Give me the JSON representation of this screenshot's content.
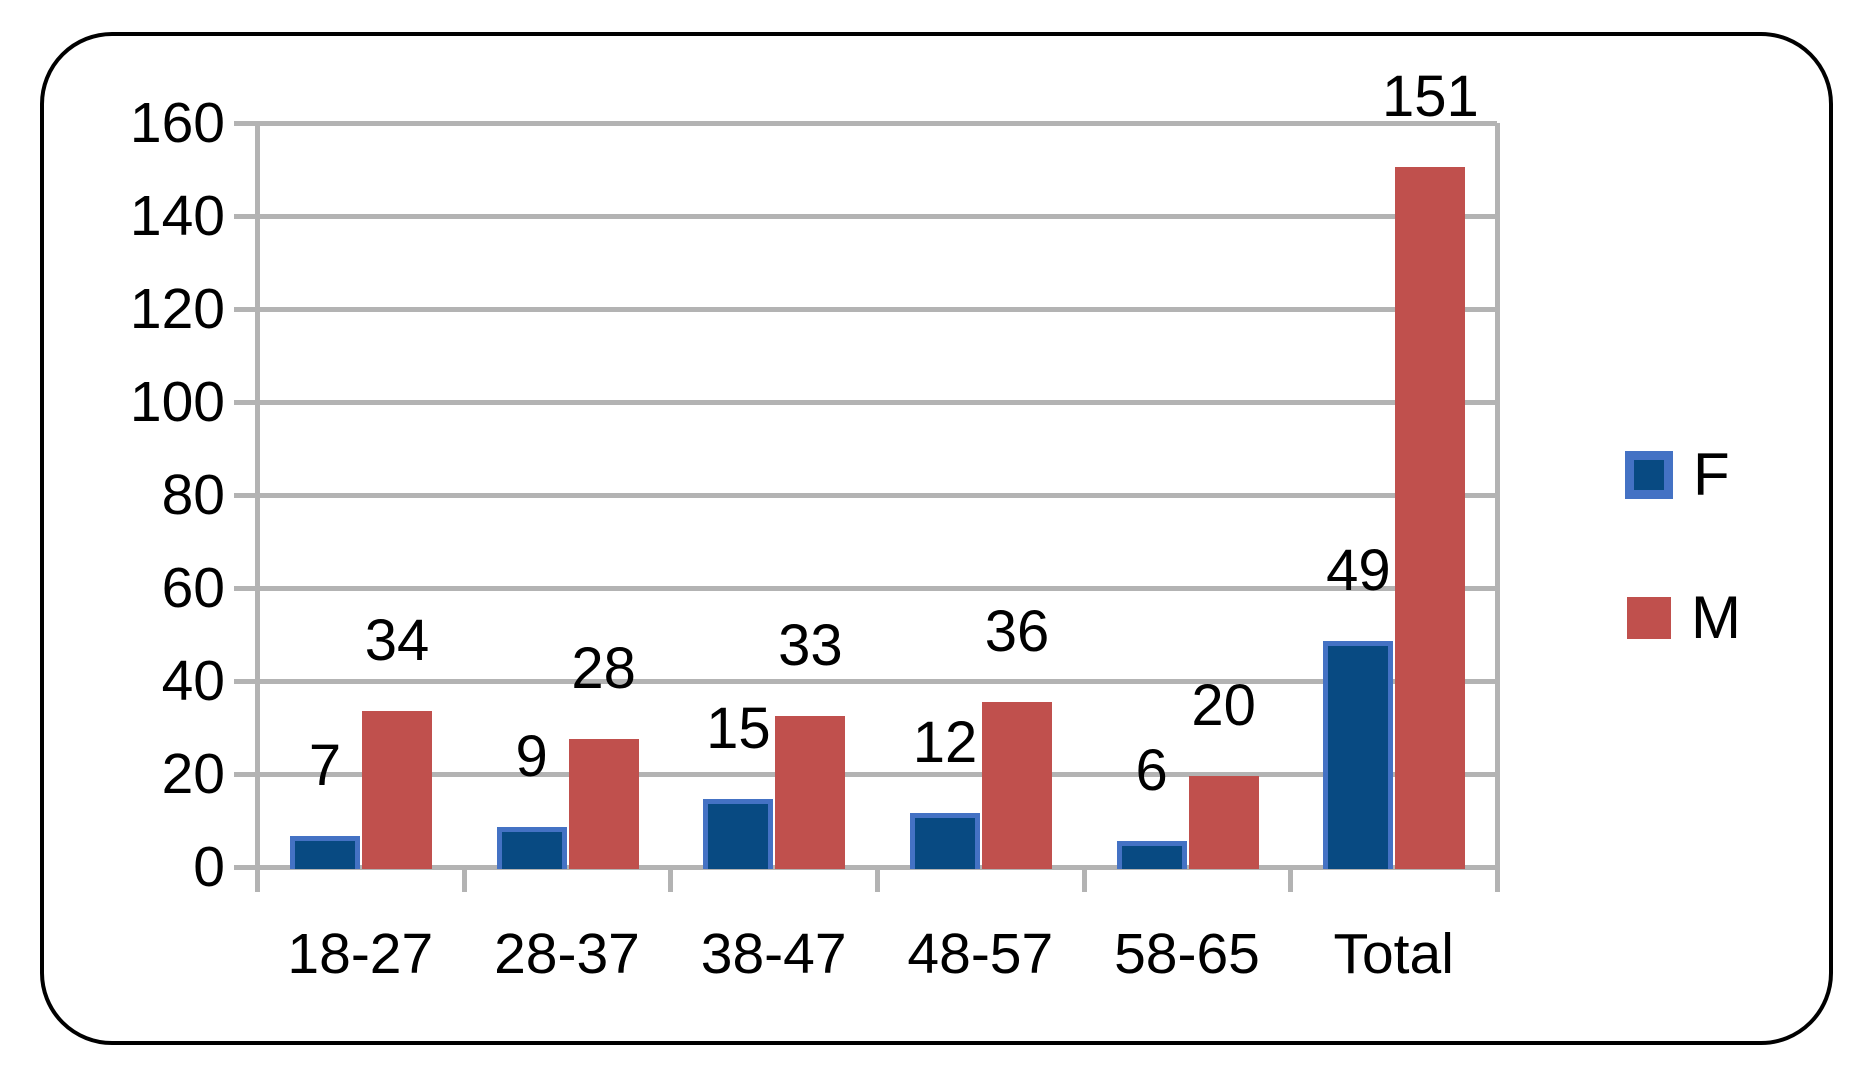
{
  "chart_data": {
    "type": "bar",
    "categories": [
      "18-27",
      "28-37",
      "38-47",
      "48-57",
      "58-65",
      "Total"
    ],
    "series": [
      {
        "name": "F",
        "values": [
          7,
          9,
          15,
          12,
          6,
          49
        ]
      },
      {
        "name": "M",
        "values": [
          34,
          28,
          33,
          36,
          20,
          151
        ]
      }
    ],
    "data_labels_shown": true,
    "ylim": [
      0,
      160
    ],
    "ytick_step": 20,
    "yticks": [
      0,
      20,
      40,
      60,
      80,
      100,
      120,
      140,
      160
    ],
    "grid": true,
    "legend": {
      "position": "right",
      "entries": [
        "F",
        "M"
      ]
    },
    "colors": {
      "F_fill": "#084a82",
      "F_border": "#4472c4",
      "M_fill": "#c0504d",
      "gridline": "#b3b3b3",
      "text": "#000000",
      "frame_border": "#000000",
      "background": "#ffffff"
    }
  }
}
